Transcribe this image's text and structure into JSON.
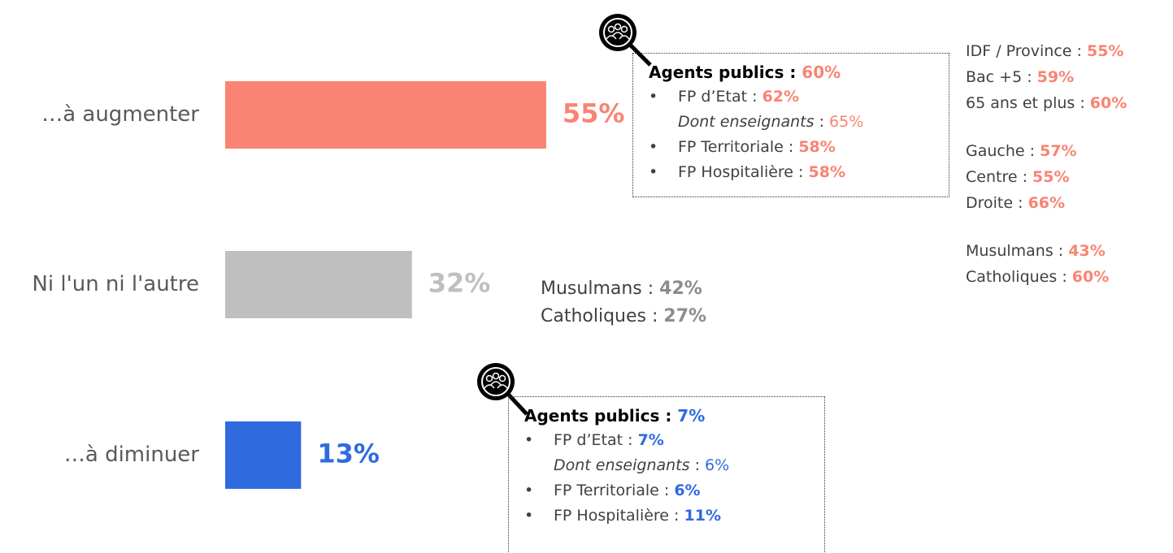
{
  "chart_data": {
    "type": "bar",
    "orientation": "horizontal",
    "categories": [
      "…à augmenter",
      "Ni l'un ni l'autre",
      "…à diminuer"
    ],
    "values": [
      55,
      32,
      13
    ],
    "value_labels": [
      "55%",
      "32%",
      "13%"
    ],
    "colors": [
      "#f98473",
      "#bfbfbf",
      "#2f6bdf"
    ],
    "xlim": [
      0,
      100
    ],
    "boxes": [
      {
        "color": "#f98473",
        "heading": {
          "label": "Agents publics :",
          "value": "60%"
        },
        "items": [
          {
            "bullet": "•",
            "label": "FP d’Etat :",
            "value": "62%"
          },
          {
            "italic": "Dont enseignants",
            "label": " :",
            "value": "65%"
          },
          {
            "bullet": "•",
            "label": "FP Territoriale :",
            "value": "58%"
          },
          {
            "bullet": "•",
            "label": "FP Hospitalière :",
            "value": "58%"
          }
        ]
      },
      {
        "color": "#2f6bdf",
        "heading": {
          "label": "Agents publics :",
          "value": "7%"
        },
        "items": [
          {
            "bullet": "•",
            "label": "FP d’Etat :",
            "value": "7%"
          },
          {
            "italic": "Dont enseignants",
            "label": " :",
            "value": "6%"
          },
          {
            "bullet": "•",
            "label": "FP Territoriale :",
            "value": "6%"
          },
          {
            "bullet": "•",
            "label": "FP Hospitalière :",
            "value": "11%"
          }
        ]
      }
    ],
    "lists": [
      {
        "color": "#f98473",
        "groups": [
          [
            {
              "label": "IDF / Province :",
              "value": "55%"
            },
            {
              "label": "Bac +5 :",
              "value": "59%"
            },
            {
              "label": "65 ans et plus :",
              "value": "60%"
            }
          ],
          [
            {
              "label": "Gauche :",
              "value": "57%"
            },
            {
              "label": "Centre :",
              "value": "55%"
            },
            {
              "label": "Droite :",
              "value": "66%"
            }
          ],
          [
            {
              "label": "Musulmans :",
              "value": "43%"
            },
            {
              "label": "Catholiques :",
              "value": "60%"
            }
          ]
        ]
      },
      {
        "color": "#8c8c8c",
        "groups": [
          [
            {
              "label": "Musulmans :",
              "value": "42%"
            },
            {
              "label": "Catholiques :",
              "value": "27%"
            }
          ]
        ]
      }
    ]
  }
}
